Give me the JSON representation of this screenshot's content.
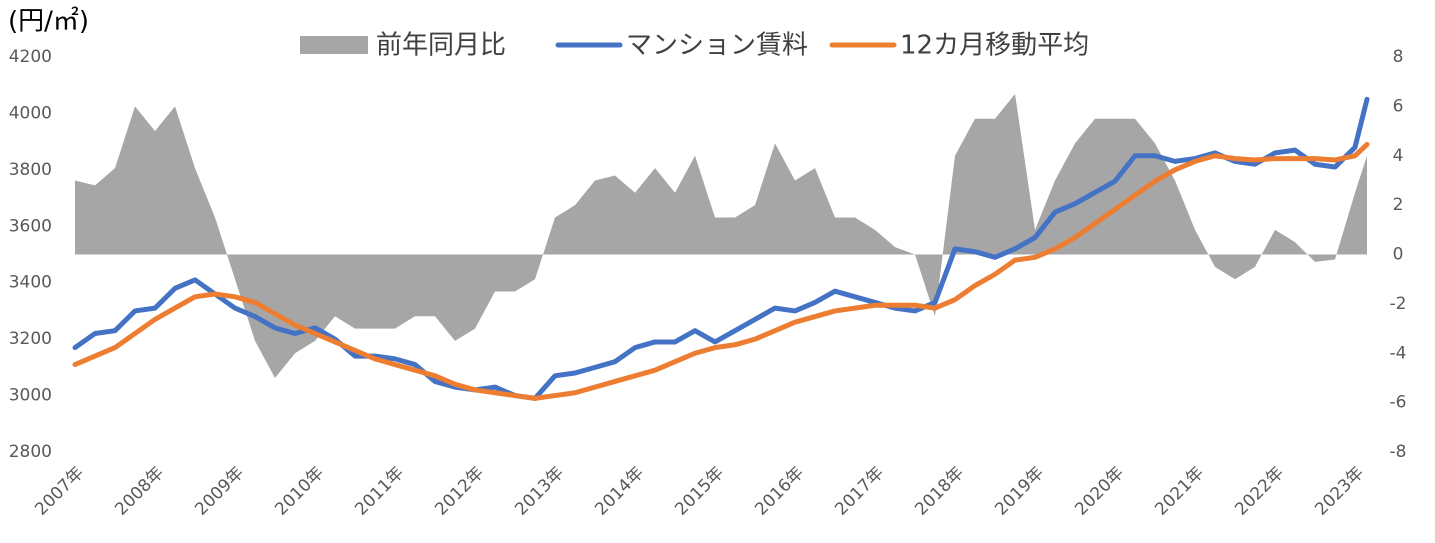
{
  "chart_data": {
    "type": "combo",
    "y_axis_label": "(円/㎡)",
    "x": [
      2007,
      2007.25,
      2007.5,
      2007.75,
      2008,
      2008.25,
      2008.5,
      2008.75,
      2009,
      2009.25,
      2009.5,
      2009.75,
      2010,
      2010.25,
      2010.5,
      2010.75,
      2011,
      2011.25,
      2011.5,
      2011.75,
      2012,
      2012.25,
      2012.5,
      2012.75,
      2013,
      2013.25,
      2013.5,
      2013.75,
      2014,
      2014.25,
      2014.5,
      2014.75,
      2015,
      2015.25,
      2015.5,
      2015.75,
      2016,
      2016.25,
      2016.5,
      2016.75,
      2017,
      2017.25,
      2017.5,
      2017.75,
      2018,
      2018.25,
      2018.5,
      2018.75,
      2019,
      2019.25,
      2019.5,
      2019.75,
      2020,
      2020.25,
      2020.5,
      2020.75,
      2021,
      2021.25,
      2021.5,
      2021.75,
      2022,
      2022.25,
      2022.5,
      2022.75,
      2023,
      2023.15
    ],
    "series": [
      {
        "name": "前年同月比",
        "type": "area",
        "axis": "y2",
        "color": "#a6a6a6",
        "values": [
          3.0,
          2.8,
          3.5,
          6.0,
          5.0,
          6.0,
          3.5,
          1.5,
          -1.0,
          -3.5,
          -5.0,
          -4.0,
          -3.5,
          -2.5,
          -3.0,
          -3.0,
          -3.0,
          -2.5,
          -2.5,
          -3.5,
          -3.0,
          -1.5,
          -1.5,
          -1.0,
          1.5,
          2.0,
          3.0,
          3.2,
          2.5,
          3.5,
          2.5,
          4.0,
          1.5,
          1.5,
          2.0,
          4.5,
          3.0,
          3.5,
          1.5,
          1.5,
          1.0,
          0.3,
          0.0,
          -2.5,
          4.0,
          5.5,
          5.5,
          6.5,
          1.0,
          3.0,
          4.5,
          5.5,
          5.5,
          5.5,
          4.5,
          3.0,
          1.0,
          -0.5,
          -1.0,
          -0.5,
          1.0,
          0.5,
          -0.3,
          -0.2,
          2.5,
          4.0
        ]
      },
      {
        "name": "マンション賃料",
        "type": "line",
        "color": "#4472c4",
        "values": [
          3170,
          3220,
          3230,
          3300,
          3310,
          3380,
          3410,
          3360,
          3310,
          3280,
          3240,
          3220,
          3240,
          3200,
          3140,
          3140,
          3130,
          3110,
          3050,
          3030,
          3020,
          3030,
          3000,
          2990,
          3070,
          3080,
          3100,
          3120,
          3170,
          3190,
          3190,
          3230,
          3190,
          3230,
          3270,
          3310,
          3300,
          3330,
          3370,
          3350,
          3330,
          3310,
          3300,
          3330,
          3520,
          3510,
          3490,
          3520,
          3560,
          3650,
          3680,
          3720,
          3760,
          3850,
          3850,
          3830,
          3840,
          3860,
          3830,
          3820,
          3860,
          3870,
          3820,
          3810,
          3880,
          4050
        ]
      },
      {
        "name": "12カ月移動平均",
        "type": "line",
        "color": "#ed7d31",
        "values": [
          3110,
          3140,
          3170,
          3220,
          3270,
          3310,
          3350,
          3360,
          3350,
          3330,
          3290,
          3250,
          3220,
          3190,
          3160,
          3130,
          3110,
          3090,
          3070,
          3040,
          3020,
          3010,
          3000,
          2990,
          3000,
          3010,
          3030,
          3050,
          3070,
          3090,
          3120,
          3150,
          3170,
          3180,
          3200,
          3230,
          3260,
          3280,
          3300,
          3310,
          3320,
          3320,
          3320,
          3310,
          3340,
          3390,
          3430,
          3480,
          3490,
          3520,
          3560,
          3610,
          3660,
          3710,
          3760,
          3800,
          3830,
          3850,
          3840,
          3835,
          3840,
          3840,
          3840,
          3835,
          3850,
          3890
        ]
      }
    ],
    "xlim": [
      2007,
      2023.35
    ],
    "xticks": [
      {
        "value": 2007,
        "label": "2007年"
      },
      {
        "value": 2008,
        "label": "2008年"
      },
      {
        "value": 2009,
        "label": "2009年"
      },
      {
        "value": 2010,
        "label": "2010年"
      },
      {
        "value": 2011,
        "label": "2011年"
      },
      {
        "value": 2012,
        "label": "2012年"
      },
      {
        "value": 2013,
        "label": "2013年"
      },
      {
        "value": 2014,
        "label": "2014年"
      },
      {
        "value": 2015,
        "label": "2015年"
      },
      {
        "value": 2016,
        "label": "2016年"
      },
      {
        "value": 2017,
        "label": "2017年"
      },
      {
        "value": 2018,
        "label": "2018年"
      },
      {
        "value": 2019,
        "label": "2019年"
      },
      {
        "value": 2020,
        "label": "2020年"
      },
      {
        "value": 2021,
        "label": "2021年"
      },
      {
        "value": 2022,
        "label": "2022年"
      },
      {
        "value": 2023,
        "label": "2023年"
      }
    ],
    "ylim": [
      2800,
      4200
    ],
    "yticks": [
      2800,
      3000,
      3200,
      3400,
      3600,
      3800,
      4000,
      4200
    ],
    "y2lim": [
      -8,
      8
    ],
    "y2ticks": [
      -8,
      -6,
      -4,
      -2,
      0,
      2,
      4,
      6,
      8
    ],
    "legend": "top"
  }
}
